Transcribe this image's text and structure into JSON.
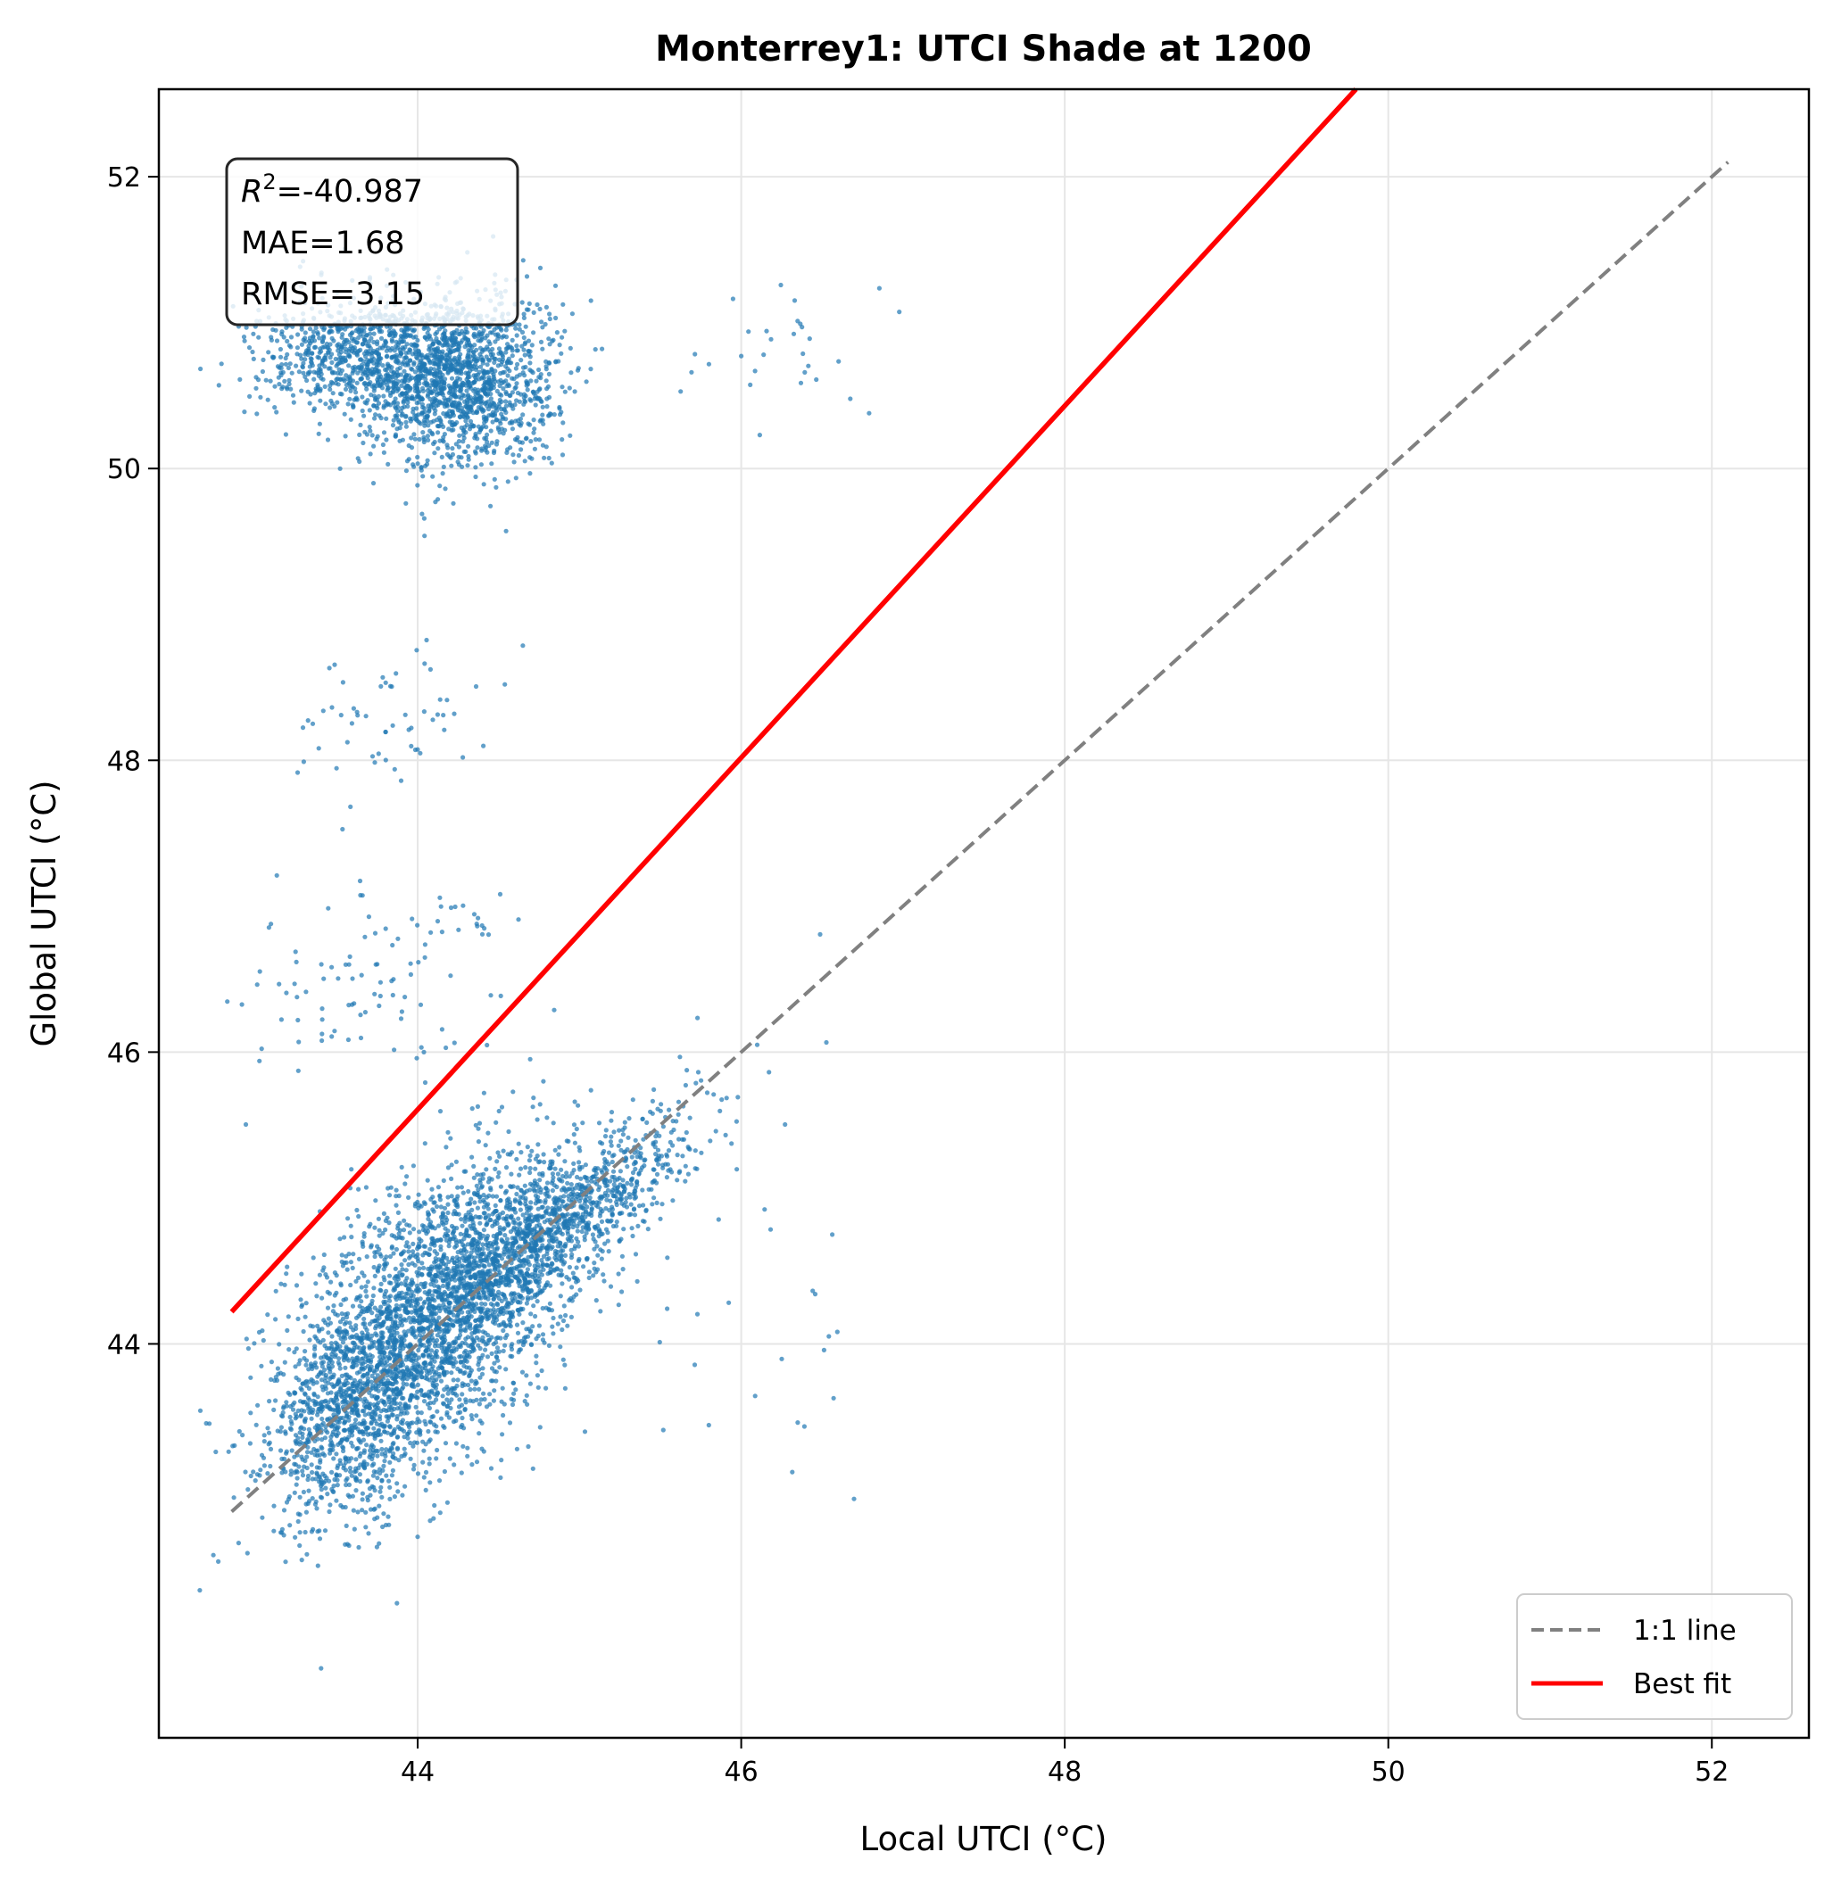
{
  "chart_data": {
    "type": "scatter",
    "title": "Monterrey1: UTCI Shade at 1200",
    "xlabel": "Local UTCI (°C)",
    "ylabel": "Global UTCI (°C)",
    "xlim": [
      42.4,
      52.6
    ],
    "ylim": [
      41.3,
      52.6
    ],
    "xticks": [
      44,
      46,
      48,
      50,
      52
    ],
    "yticks": [
      44,
      46,
      48,
      50,
      52
    ],
    "grid": true,
    "stats": {
      "r2_label": "R",
      "r2_sup": "2",
      "r2_value": "=-40.987",
      "mae": "MAE=1.68",
      "rmse": "RMSE=3.15"
    },
    "legend": {
      "location": "lower-right",
      "entries": [
        "1:1 line",
        "Best fit"
      ]
    },
    "series": [
      {
        "name": "points",
        "color": "#1f77b4",
        "clusters": [
          {
            "cx": 44.1,
            "cy": 44.2,
            "sx": 0.45,
            "sy": 0.55,
            "n": 2600,
            "corr": 0.5
          },
          {
            "cx": 44.8,
            "cy": 44.75,
            "sx": 0.45,
            "sy": 0.4,
            "n": 1200,
            "corr": 0.85
          },
          {
            "cx": 43.6,
            "cy": 43.5,
            "sx": 0.25,
            "sy": 0.35,
            "n": 700,
            "corr": 0.3
          },
          {
            "cx": 44.25,
            "cy": 50.6,
            "sx": 0.3,
            "sy": 0.3,
            "n": 1400,
            "corr": 0.0
          },
          {
            "cx": 43.7,
            "cy": 50.75,
            "sx": 0.35,
            "sy": 0.2,
            "n": 800,
            "corr": 0.0
          },
          {
            "cx": 43.8,
            "cy": 48.3,
            "sx": 0.3,
            "sy": 0.25,
            "n": 60,
            "corr": 0.0
          },
          {
            "cx": 43.7,
            "cy": 46.4,
            "sx": 0.4,
            "sy": 0.35,
            "n": 90,
            "corr": 0.0
          },
          {
            "cx": 44.3,
            "cy": 46.9,
            "sx": 0.1,
            "sy": 0.08,
            "n": 15,
            "corr": 0.0
          },
          {
            "cx": 46.2,
            "cy": 50.8,
            "sx": 0.25,
            "sy": 0.25,
            "n": 30,
            "corr": 0.0
          },
          {
            "cx": 46.2,
            "cy": 44.8,
            "sx": 0.4,
            "sy": 0.9,
            "n": 30,
            "corr": 0.0
          }
        ]
      },
      {
        "name": "1:1 line",
        "color": "#808080",
        "style": "dashed",
        "x": [
          42.85,
          52.1
        ],
        "y": [
          42.85,
          52.1
        ]
      },
      {
        "name": "Best fit",
        "color": "#ff0000",
        "style": "solid",
        "x": [
          42.85,
          49.8
        ],
        "y": [
          44.22,
          52.6
        ]
      }
    ]
  }
}
